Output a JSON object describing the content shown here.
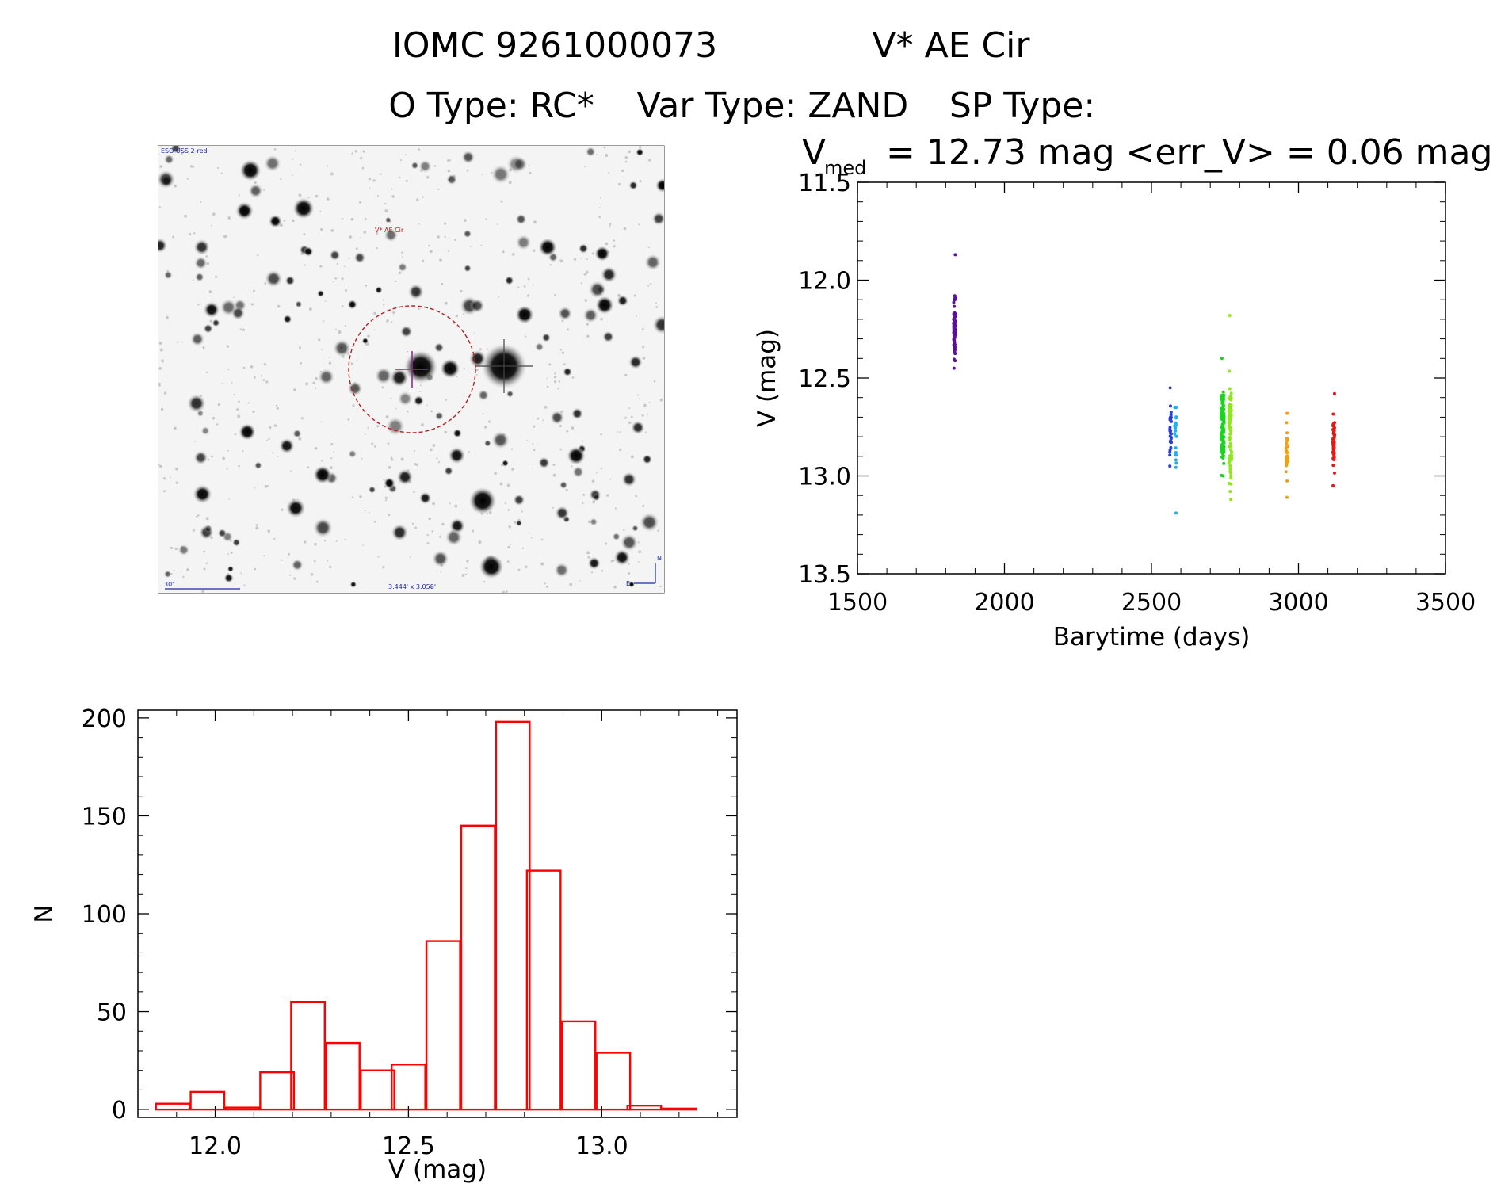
{
  "header": {
    "line1_id": "IOMC 9261000073",
    "line1_name": "V* AE Cir",
    "line2_otype": "O Type: RC*",
    "line2_vartype": "Var Type: ZAND",
    "line2_sptype": "SP Type:"
  },
  "image_panel": {
    "survey_label": "ESO USS 2-red",
    "target_label": "V* AE Cir",
    "scale_label": "30\"",
    "size_label": "3.444' x 3.058'",
    "north_label": "N",
    "east_label": "E"
  },
  "chart_data": [
    {
      "type": "scatter",
      "title_prefix": "V",
      "title_sub": "med",
      "title_rest": "= 12.73 mag <err_V> = 0.06 mag",
      "xlabel": "Barytime (days)",
      "ylabel": "V (mag)",
      "xlim": [
        1500,
        3500
      ],
      "ylim": [
        13.5,
        11.5
      ],
      "y_inverted": true,
      "x_ticks": [
        1500,
        2000,
        2500,
        3000,
        3500
      ],
      "x_tick_labels": [
        "1500",
        "2000",
        "2500",
        "3000",
        "3500"
      ],
      "y_ticks": [
        11.5,
        12.0,
        12.5,
        13.0,
        13.5
      ],
      "y_tick_labels": [
        "11.5",
        "12.0",
        "12.5",
        "13.0",
        "13.5"
      ],
      "groups": [
        {
          "x_center": 1830,
          "x_spread": 6,
          "y_min": 11.87,
          "y_max": 12.45,
          "y_core": 12.25,
          "n": 80,
          "color": "#5b0fa0"
        },
        {
          "x_center": 2565,
          "x_spread": 5,
          "y_min": 12.55,
          "y_max": 12.95,
          "y_core": 12.75,
          "n": 30,
          "color": "#2a3fd8"
        },
        {
          "x_center": 2582,
          "x_spread": 6,
          "y_min": 12.65,
          "y_max": 13.19,
          "y_core": 12.8,
          "n": 25,
          "color": "#1ab2ee"
        },
        {
          "x_center": 2742,
          "x_spread": 10,
          "y_min": 12.4,
          "y_max": 13.0,
          "y_core": 12.75,
          "n": 110,
          "color": "#18d61e"
        },
        {
          "x_center": 2768,
          "x_spread": 9,
          "y_min": 12.18,
          "y_max": 13.12,
          "y_core": 12.75,
          "n": 70,
          "color": "#8ee81a"
        },
        {
          "x_center": 2960,
          "x_spread": 5,
          "y_min": 12.68,
          "y_max": 13.11,
          "y_core": 12.86,
          "n": 35,
          "color": "#f2a012"
        },
        {
          "x_center": 3120,
          "x_spread": 6,
          "y_min": 12.58,
          "y_max": 13.05,
          "y_core": 12.84,
          "n": 50,
          "color": "#e41818"
        }
      ]
    },
    {
      "type": "bar",
      "style": "histogram-outline",
      "xlabel": "V (mag)",
      "ylabel": "N",
      "xlim": [
        11.8,
        13.35
      ],
      "ylim": [
        -4,
        204
      ],
      "bar_color": "#ff0000",
      "bin_width": 0.087,
      "bin_centers": [
        11.89,
        11.98,
        12.07,
        12.16,
        12.24,
        12.33,
        12.42,
        12.5,
        12.59,
        12.68,
        12.77,
        12.85,
        12.94,
        13.03,
        13.11,
        13.2
      ],
      "values": [
        3,
        9,
        1,
        19,
        55,
        34,
        20,
        23,
        86,
        145,
        198,
        122,
        45,
        29,
        2,
        0.5
      ],
      "x_ticks": [
        12.0,
        12.5,
        13.0
      ],
      "x_tick_labels": [
        "12.0",
        "12.5",
        "13.0"
      ],
      "y_ticks": [
        0,
        50,
        100,
        150,
        200
      ],
      "y_tick_labels": [
        "0",
        "50",
        "100",
        "150",
        "200"
      ]
    }
  ]
}
